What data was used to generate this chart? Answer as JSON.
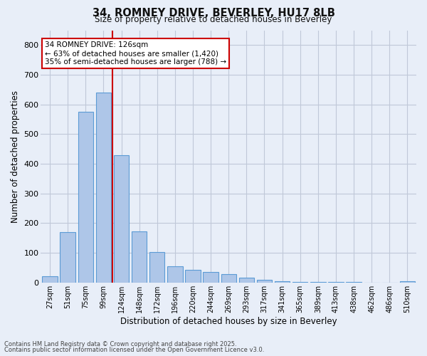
{
  "title1": "34, ROMNEY DRIVE, BEVERLEY, HU17 8LB",
  "title2": "Size of property relative to detached houses in Beverley",
  "xlabel": "Distribution of detached houses by size in Beverley",
  "ylabel": "Number of detached properties",
  "bar_labels": [
    "27sqm",
    "51sqm",
    "75sqm",
    "99sqm",
    "124sqm",
    "148sqm",
    "172sqm",
    "196sqm",
    "220sqm",
    "244sqm",
    "269sqm",
    "293sqm",
    "317sqm",
    "341sqm",
    "365sqm",
    "389sqm",
    "413sqm",
    "438sqm",
    "462sqm",
    "486sqm",
    "510sqm"
  ],
  "bar_values": [
    20,
    170,
    575,
    640,
    430,
    172,
    102,
    55,
    42,
    35,
    28,
    16,
    10,
    5,
    3,
    2,
    1,
    1,
    0,
    0,
    5
  ],
  "bar_color": "#aec6e8",
  "bar_edge_color": "#5b9bd5",
  "vline_color": "#cc0000",
  "annotation_text": "34 ROMNEY DRIVE: 126sqm\n← 63% of detached houses are smaller (1,420)\n35% of semi-detached houses are larger (788) →",
  "annotation_box_color": "#ffffff",
  "annotation_edge_color": "#cc0000",
  "ylim": [
    0,
    850
  ],
  "yticks": [
    0,
    100,
    200,
    300,
    400,
    500,
    600,
    700,
    800
  ],
  "grid_color": "#c0c8d8",
  "bg_color": "#e8eef8",
  "footer1": "Contains HM Land Registry data © Crown copyright and database right 2025.",
  "footer2": "Contains public sector information licensed under the Open Government Licence v3.0."
}
